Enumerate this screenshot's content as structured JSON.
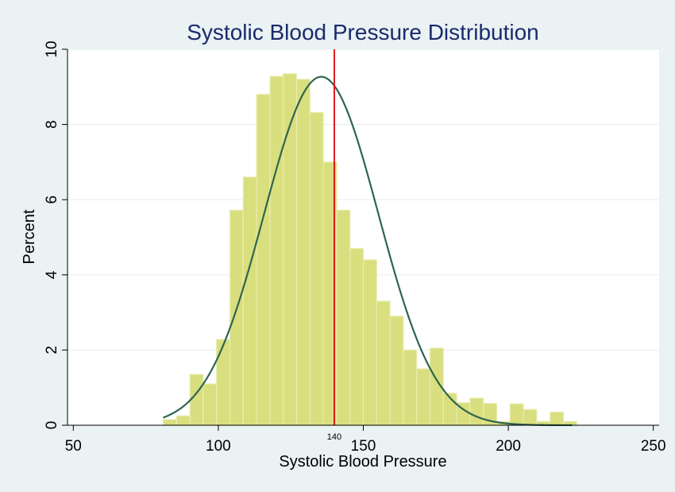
{
  "chart_data": {
    "type": "bar",
    "title": "Systolic Blood Pressure Distribution",
    "xlabel": "Systolic Blood Pressure",
    "ylabel": "Percent",
    "xlim": [
      48,
      252
    ],
    "ylim": [
      0,
      10
    ],
    "xticks": [
      "50",
      "100",
      "150",
      "200",
      "250"
    ],
    "yticks": [
      "0",
      "2",
      "4",
      "6",
      "8",
      "10"
    ],
    "grid": "horizontal",
    "bin_width": 4.6,
    "bins": [
      {
        "x0": 81.0,
        "value": 0.15
      },
      {
        "x0": 85.6,
        "value": 0.25
      },
      {
        "x0": 90.2,
        "value": 1.35
      },
      {
        "x0": 94.8,
        "value": 1.1
      },
      {
        "x0": 99.4,
        "value": 2.28
      },
      {
        "x0": 104.0,
        "value": 5.72
      },
      {
        "x0": 108.6,
        "value": 6.6
      },
      {
        "x0": 113.2,
        "value": 8.8
      },
      {
        "x0": 117.8,
        "value": 9.28
      },
      {
        "x0": 122.4,
        "value": 9.35
      },
      {
        "x0": 127.0,
        "value": 9.2
      },
      {
        "x0": 131.6,
        "value": 8.32
      },
      {
        "x0": 136.2,
        "value": 7.0
      },
      {
        "x0": 140.8,
        "value": 5.72
      },
      {
        "x0": 145.4,
        "value": 4.7
      },
      {
        "x0": 150.0,
        "value": 4.4
      },
      {
        "x0": 154.6,
        "value": 3.3
      },
      {
        "x0": 159.2,
        "value": 2.9
      },
      {
        "x0": 163.8,
        "value": 2.0
      },
      {
        "x0": 168.4,
        "value": 1.5
      },
      {
        "x0": 173.0,
        "value": 2.05
      },
      {
        "x0": 177.6,
        "value": 0.85
      },
      {
        "x0": 182.2,
        "value": 0.6
      },
      {
        "x0": 186.8,
        "value": 0.72
      },
      {
        "x0": 191.4,
        "value": 0.58
      },
      {
        "x0": 196.0,
        "value": 0.1
      },
      {
        "x0": 200.6,
        "value": 0.57
      },
      {
        "x0": 205.2,
        "value": 0.42
      },
      {
        "x0": 209.8,
        "value": 0.1
      },
      {
        "x0": 214.4,
        "value": 0.35
      },
      {
        "x0": 219.0,
        "value": 0.1
      }
    ],
    "normal_curve": {
      "mean": 135.5,
      "sd": 19.7,
      "scale": 0.995,
      "x_range": [
        81,
        222
      ]
    },
    "reference_line": {
      "x": 140,
      "label": "140"
    },
    "colors": {
      "background": "#eaf2f3",
      "plot_area": "#ffffff",
      "bar_fill": "#d9df7e",
      "bar_edge": "#e8ecb0",
      "curve": "#2f6550",
      "reference_line": "#e0181b",
      "title": "#1a2a6c",
      "grid": "#e6eef0"
    }
  }
}
